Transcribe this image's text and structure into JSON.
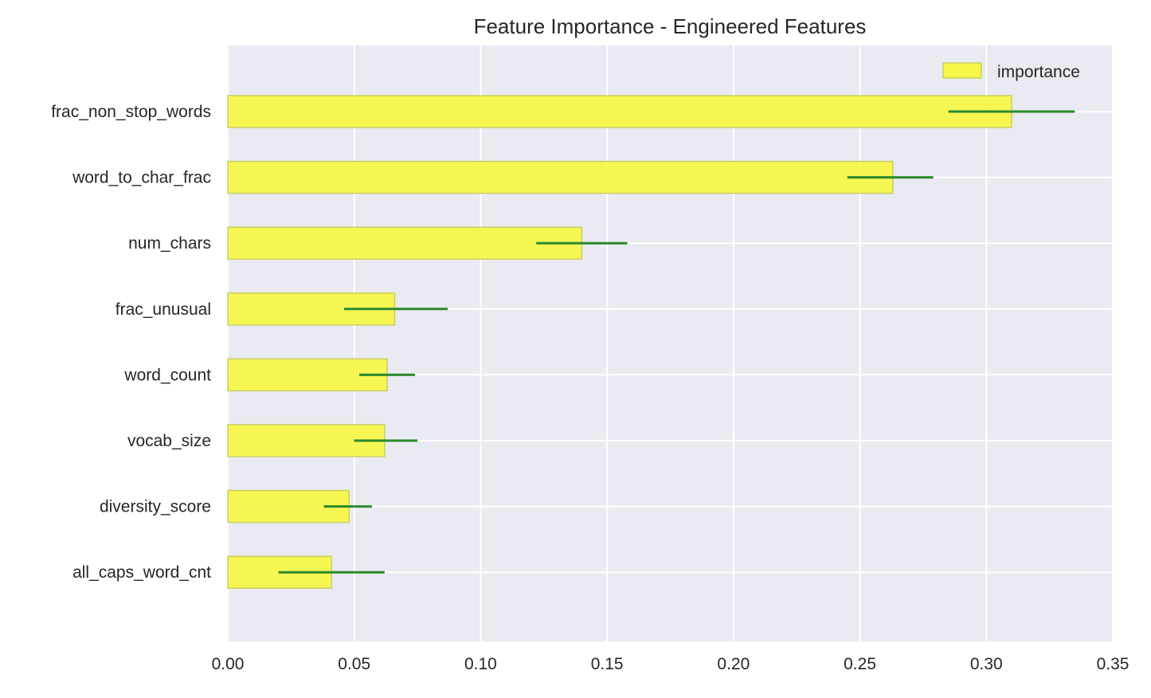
{
  "chart_data": {
    "type": "bar",
    "orientation": "horizontal",
    "title": "Feature Importance - Engineered Features",
    "xlabel": "",
    "ylabel": "",
    "xlim": [
      0.0,
      0.35
    ],
    "x_ticks": [
      "0.00",
      "0.05",
      "0.10",
      "0.15",
      "0.20",
      "0.25",
      "0.30",
      "0.35"
    ],
    "categories": [
      "frac_non_stop_words",
      "word_to_char_frac",
      "num_chars",
      "frac_unusual",
      "word_count",
      "vocab_size",
      "diversity_score",
      "all_caps_word_cnt"
    ],
    "series": [
      {
        "name": "importance",
        "values": [
          0.31,
          0.263,
          0.14,
          0.066,
          0.063,
          0.062,
          0.048,
          0.041
        ],
        "error_low": [
          0.285,
          0.245,
          0.122,
          0.046,
          0.052,
          0.05,
          0.038,
          0.02
        ],
        "error_high": [
          0.335,
          0.279,
          0.158,
          0.087,
          0.074,
          0.075,
          0.057,
          0.062
        ]
      }
    ],
    "legend": {
      "entries": [
        "importance"
      ],
      "position": "top-right"
    },
    "grid": true,
    "colors": {
      "bar_fill": "#f6f647",
      "bar_edge": "#c9cf62",
      "error_bar": "#2b8a2b",
      "plot_background": "#eaeaf2",
      "grid": "#ffffff",
      "text": "#262626"
    }
  }
}
